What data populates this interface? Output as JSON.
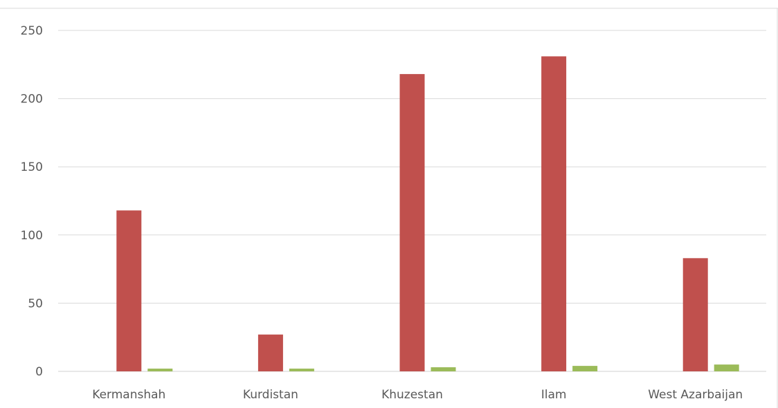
{
  "chart_data": {
    "type": "bar",
    "title": "",
    "xlabel": "",
    "ylabel": "",
    "categories": [
      "Kermanshah",
      "Kurdistan",
      "Khuzestan",
      "Ilam",
      "West Azarbaijan"
    ],
    "series": [
      {
        "values": [
          0,
          0,
          0,
          0,
          0
        ],
        "color": "#4472C4"
      },
      {
        "values": [
          118,
          27,
          218,
          231,
          83
        ],
        "color": "#C0504D"
      },
      {
        "values": [
          2,
          2,
          3,
          4,
          5
        ],
        "color": "#9BBB59"
      }
    ],
    "ylim": [
      0,
      250
    ],
    "yticks": [
      0,
      50,
      100,
      150,
      200,
      250
    ],
    "grid": true,
    "legend": "none"
  }
}
